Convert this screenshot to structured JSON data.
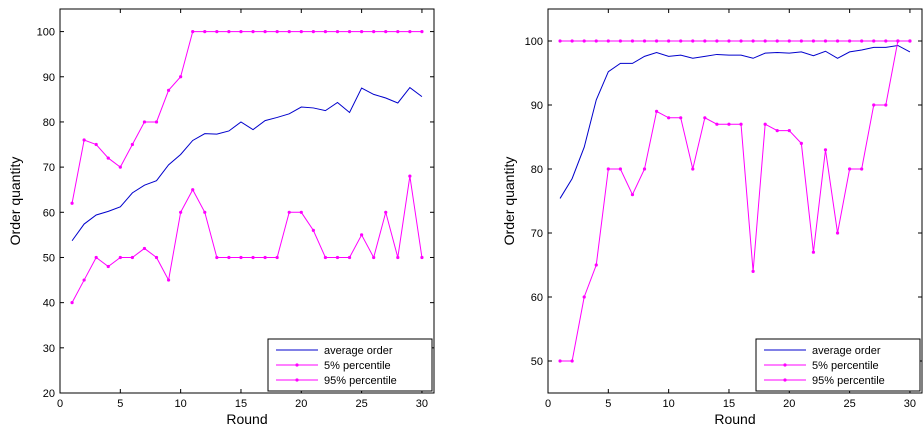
{
  "chart_data": [
    {
      "type": "line",
      "xlabel": "Round",
      "ylabel": "Order quantity",
      "xlim": [
        0,
        31
      ],
      "ylim": [
        20,
        105
      ],
      "xticks": [
        0,
        5,
        10,
        15,
        20,
        25,
        30
      ],
      "yticks": [
        20,
        30,
        40,
        50,
        60,
        70,
        80,
        90,
        100
      ],
      "grid": false,
      "legend_position": "bottom-right",
      "x": [
        1,
        2,
        3,
        4,
        5,
        6,
        7,
        8,
        9,
        10,
        11,
        12,
        13,
        14,
        15,
        16,
        17,
        18,
        19,
        20,
        21,
        22,
        23,
        24,
        25,
        26,
        27,
        28,
        29,
        30
      ],
      "series": [
        {
          "name": "average order",
          "color": "#0000cc",
          "marker": "none",
          "values": [
            53.7,
            57.4,
            59.4,
            60.2,
            61.2,
            64.3,
            66,
            67,
            70.5,
            72.8,
            75.9,
            77.4,
            77.3,
            78,
            80,
            78.3,
            80.3,
            81,
            81.8,
            83.3,
            83.1,
            82.5,
            84.3,
            82.1,
            87.5,
            86.1,
            85.3,
            84.2,
            87.6,
            85.6
          ]
        },
        {
          "name": "5% percentile",
          "color": "#ff00ff",
          "marker": "dot",
          "values": [
            40,
            45,
            50,
            48,
            50,
            50,
            52,
            50,
            45,
            60,
            65,
            60,
            50,
            50,
            50,
            50,
            50,
            50,
            60,
            60,
            56,
            50,
            50,
            50,
            55,
            50,
            60,
            50,
            68,
            50
          ]
        },
        {
          "name": "95% percentile",
          "color": "#ff00ff",
          "marker": "dot",
          "values": [
            62,
            76,
            75,
            72,
            70,
            75,
            80,
            80,
            87,
            90,
            100,
            100,
            100,
            100,
            100,
            100,
            100,
            100,
            100,
            100,
            100,
            100,
            100,
            100,
            100,
            100,
            100,
            100,
            100,
            100
          ]
        }
      ]
    },
    {
      "type": "line",
      "xlabel": "Round",
      "ylabel": "Order quantity",
      "xlim": [
        0,
        31
      ],
      "ylim": [
        45,
        105
      ],
      "xticks": [
        0,
        5,
        10,
        15,
        20,
        25,
        30
      ],
      "yticks": [
        50,
        60,
        70,
        80,
        90,
        100
      ],
      "grid": false,
      "legend_position": "bottom-right",
      "x": [
        1,
        2,
        3,
        4,
        5,
        6,
        7,
        8,
        9,
        10,
        11,
        12,
        13,
        14,
        15,
        16,
        17,
        18,
        19,
        20,
        21,
        22,
        23,
        24,
        25,
        26,
        27,
        28,
        29,
        30
      ],
      "series": [
        {
          "name": "average order",
          "color": "#0000cc",
          "marker": "none",
          "values": [
            75.4,
            78.5,
            83.4,
            90.8,
            95.2,
            96.5,
            96.5,
            97.6,
            98.2,
            97.6,
            97.8,
            97.3,
            97.6,
            97.9,
            97.8,
            97.8,
            97.3,
            98.1,
            98.2,
            98.1,
            98.3,
            97.7,
            98.4,
            97.3,
            98.3,
            98.6,
            99,
            99,
            99.3,
            98.3
          ]
        },
        {
          "name": "5% percentile",
          "color": "#ff00ff",
          "marker": "dot",
          "values": [
            50,
            50,
            60,
            65,
            80,
            80,
            76,
            80,
            89,
            88,
            88,
            80,
            88,
            87,
            87,
            87,
            64,
            87,
            86,
            86,
            84,
            67,
            83,
            70,
            80,
            80,
            90,
            90,
            100,
            100
          ]
        },
        {
          "name": "95% percentile",
          "color": "#ff00ff",
          "marker": "dot",
          "values": [
            100,
            100,
            100,
            100,
            100,
            100,
            100,
            100,
            100,
            100,
            100,
            100,
            100,
            100,
            100,
            100,
            100,
            100,
            100,
            100,
            100,
            100,
            100,
            100,
            100,
            100,
            100,
            100,
            100,
            100
          ]
        }
      ]
    }
  ]
}
